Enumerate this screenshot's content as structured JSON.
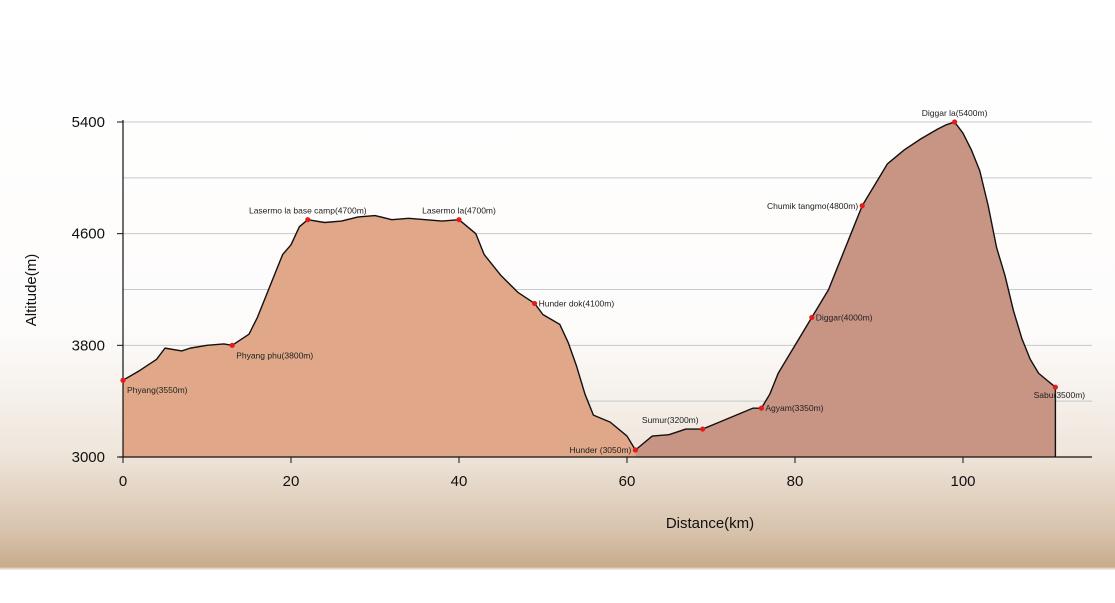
{
  "chart_data": {
    "type": "area",
    "title": "",
    "xlabel": "Distance(km)",
    "ylabel": "Altitude(m)",
    "xlim": [
      0,
      116
    ],
    "ylim": [
      3000,
      5400
    ],
    "x_ticks": [
      0,
      20,
      40,
      60,
      80,
      100
    ],
    "y_ticks": [
      3000,
      3800,
      4600,
      5400
    ],
    "grid": "horizontal",
    "split_x": 61,
    "colors": {
      "segment1": "#e0a888",
      "segment2": "#c89484",
      "outline": "#111111",
      "marker": "#e51c1c",
      "grid": "#c8c8c8"
    },
    "profile": [
      [
        0,
        3550
      ],
      [
        2,
        3620
      ],
      [
        4,
        3700
      ],
      [
        5,
        3780
      ],
      [
        7,
        3760
      ],
      [
        8,
        3780
      ],
      [
        10,
        3800
      ],
      [
        12,
        3810
      ],
      [
        13,
        3800
      ],
      [
        15,
        3880
      ],
      [
        16,
        4000
      ],
      [
        17,
        4150
      ],
      [
        18,
        4300
      ],
      [
        19,
        4450
      ],
      [
        20,
        4520
      ],
      [
        21,
        4650
      ],
      [
        22,
        4700
      ],
      [
        24,
        4680
      ],
      [
        26,
        4690
      ],
      [
        28,
        4720
      ],
      [
        30,
        4730
      ],
      [
        32,
        4700
      ],
      [
        34,
        4710
      ],
      [
        36,
        4700
      ],
      [
        38,
        4690
      ],
      [
        40,
        4700
      ],
      [
        42,
        4600
      ],
      [
        43,
        4450
      ],
      [
        45,
        4300
      ],
      [
        47,
        4180
      ],
      [
        49,
        4100
      ],
      [
        50,
        4020
      ],
      [
        52,
        3950
      ],
      [
        53,
        3820
      ],
      [
        54,
        3650
      ],
      [
        55,
        3450
      ],
      [
        56,
        3300
      ],
      [
        58,
        3250
      ],
      [
        60,
        3150
      ],
      [
        61,
        3050
      ],
      [
        63,
        3150
      ],
      [
        65,
        3160
      ],
      [
        67,
        3200
      ],
      [
        69,
        3200
      ],
      [
        71,
        3250
      ],
      [
        73,
        3300
      ],
      [
        75,
        3350
      ],
      [
        76,
        3350
      ],
      [
        77,
        3450
      ],
      [
        78,
        3600
      ],
      [
        79,
        3700
      ],
      [
        80,
        3800
      ],
      [
        81,
        3900
      ],
      [
        82,
        4000
      ],
      [
        83,
        4100
      ],
      [
        84,
        4200
      ],
      [
        85,
        4350
      ],
      [
        86,
        4500
      ],
      [
        87,
        4650
      ],
      [
        88,
        4800
      ],
      [
        89,
        4900
      ],
      [
        90,
        5000
      ],
      [
        91,
        5100
      ],
      [
        93,
        5200
      ],
      [
        95,
        5280
      ],
      [
        97,
        5350
      ],
      [
        98,
        5380
      ],
      [
        99,
        5400
      ],
      [
        100,
        5320
      ],
      [
        101,
        5200
      ],
      [
        102,
        5050
      ],
      [
        103,
        4800
      ],
      [
        104,
        4500
      ],
      [
        105,
        4300
      ],
      [
        106,
        4050
      ],
      [
        107,
        3850
      ],
      [
        108,
        3700
      ],
      [
        109,
        3600
      ],
      [
        110,
        3550
      ],
      [
        111,
        3500
      ],
      [
        111,
        3000
      ]
    ],
    "points": [
      {
        "label": "Phyang(3550m)",
        "x": 0,
        "y": 3550,
        "anchor": "below-right"
      },
      {
        "label": "Phyang phu(3800m)",
        "x": 13,
        "y": 3800,
        "anchor": "below-right"
      },
      {
        "label": "Lasermo la base camp(4700m)",
        "x": 22,
        "y": 4700,
        "anchor": "above"
      },
      {
        "label": "Lasermo la(4700m)",
        "x": 40,
        "y": 4700,
        "anchor": "above"
      },
      {
        "label": "Hunder dok(4100m)",
        "x": 49,
        "y": 4100,
        "anchor": "right"
      },
      {
        "label": "Hunder (3050m)",
        "x": 61,
        "y": 3050,
        "anchor": "left"
      },
      {
        "label": "Sumur(3200m)",
        "x": 69,
        "y": 3200,
        "anchor": "above-left"
      },
      {
        "label": "Agyam(3350m)",
        "x": 76,
        "y": 3350,
        "anchor": "right"
      },
      {
        "label": "Diggar(4000m)",
        "x": 82,
        "y": 4000,
        "anchor": "right"
      },
      {
        "label": "Chumik tangmo(4800m)",
        "x": 88,
        "y": 4800,
        "anchor": "left"
      },
      {
        "label": "Diggar la(5400m)",
        "x": 99,
        "y": 5400,
        "anchor": "above"
      },
      {
        "label": "Sabu(3500m)",
        "x": 111,
        "y": 3500,
        "anchor": "below-left"
      }
    ]
  }
}
